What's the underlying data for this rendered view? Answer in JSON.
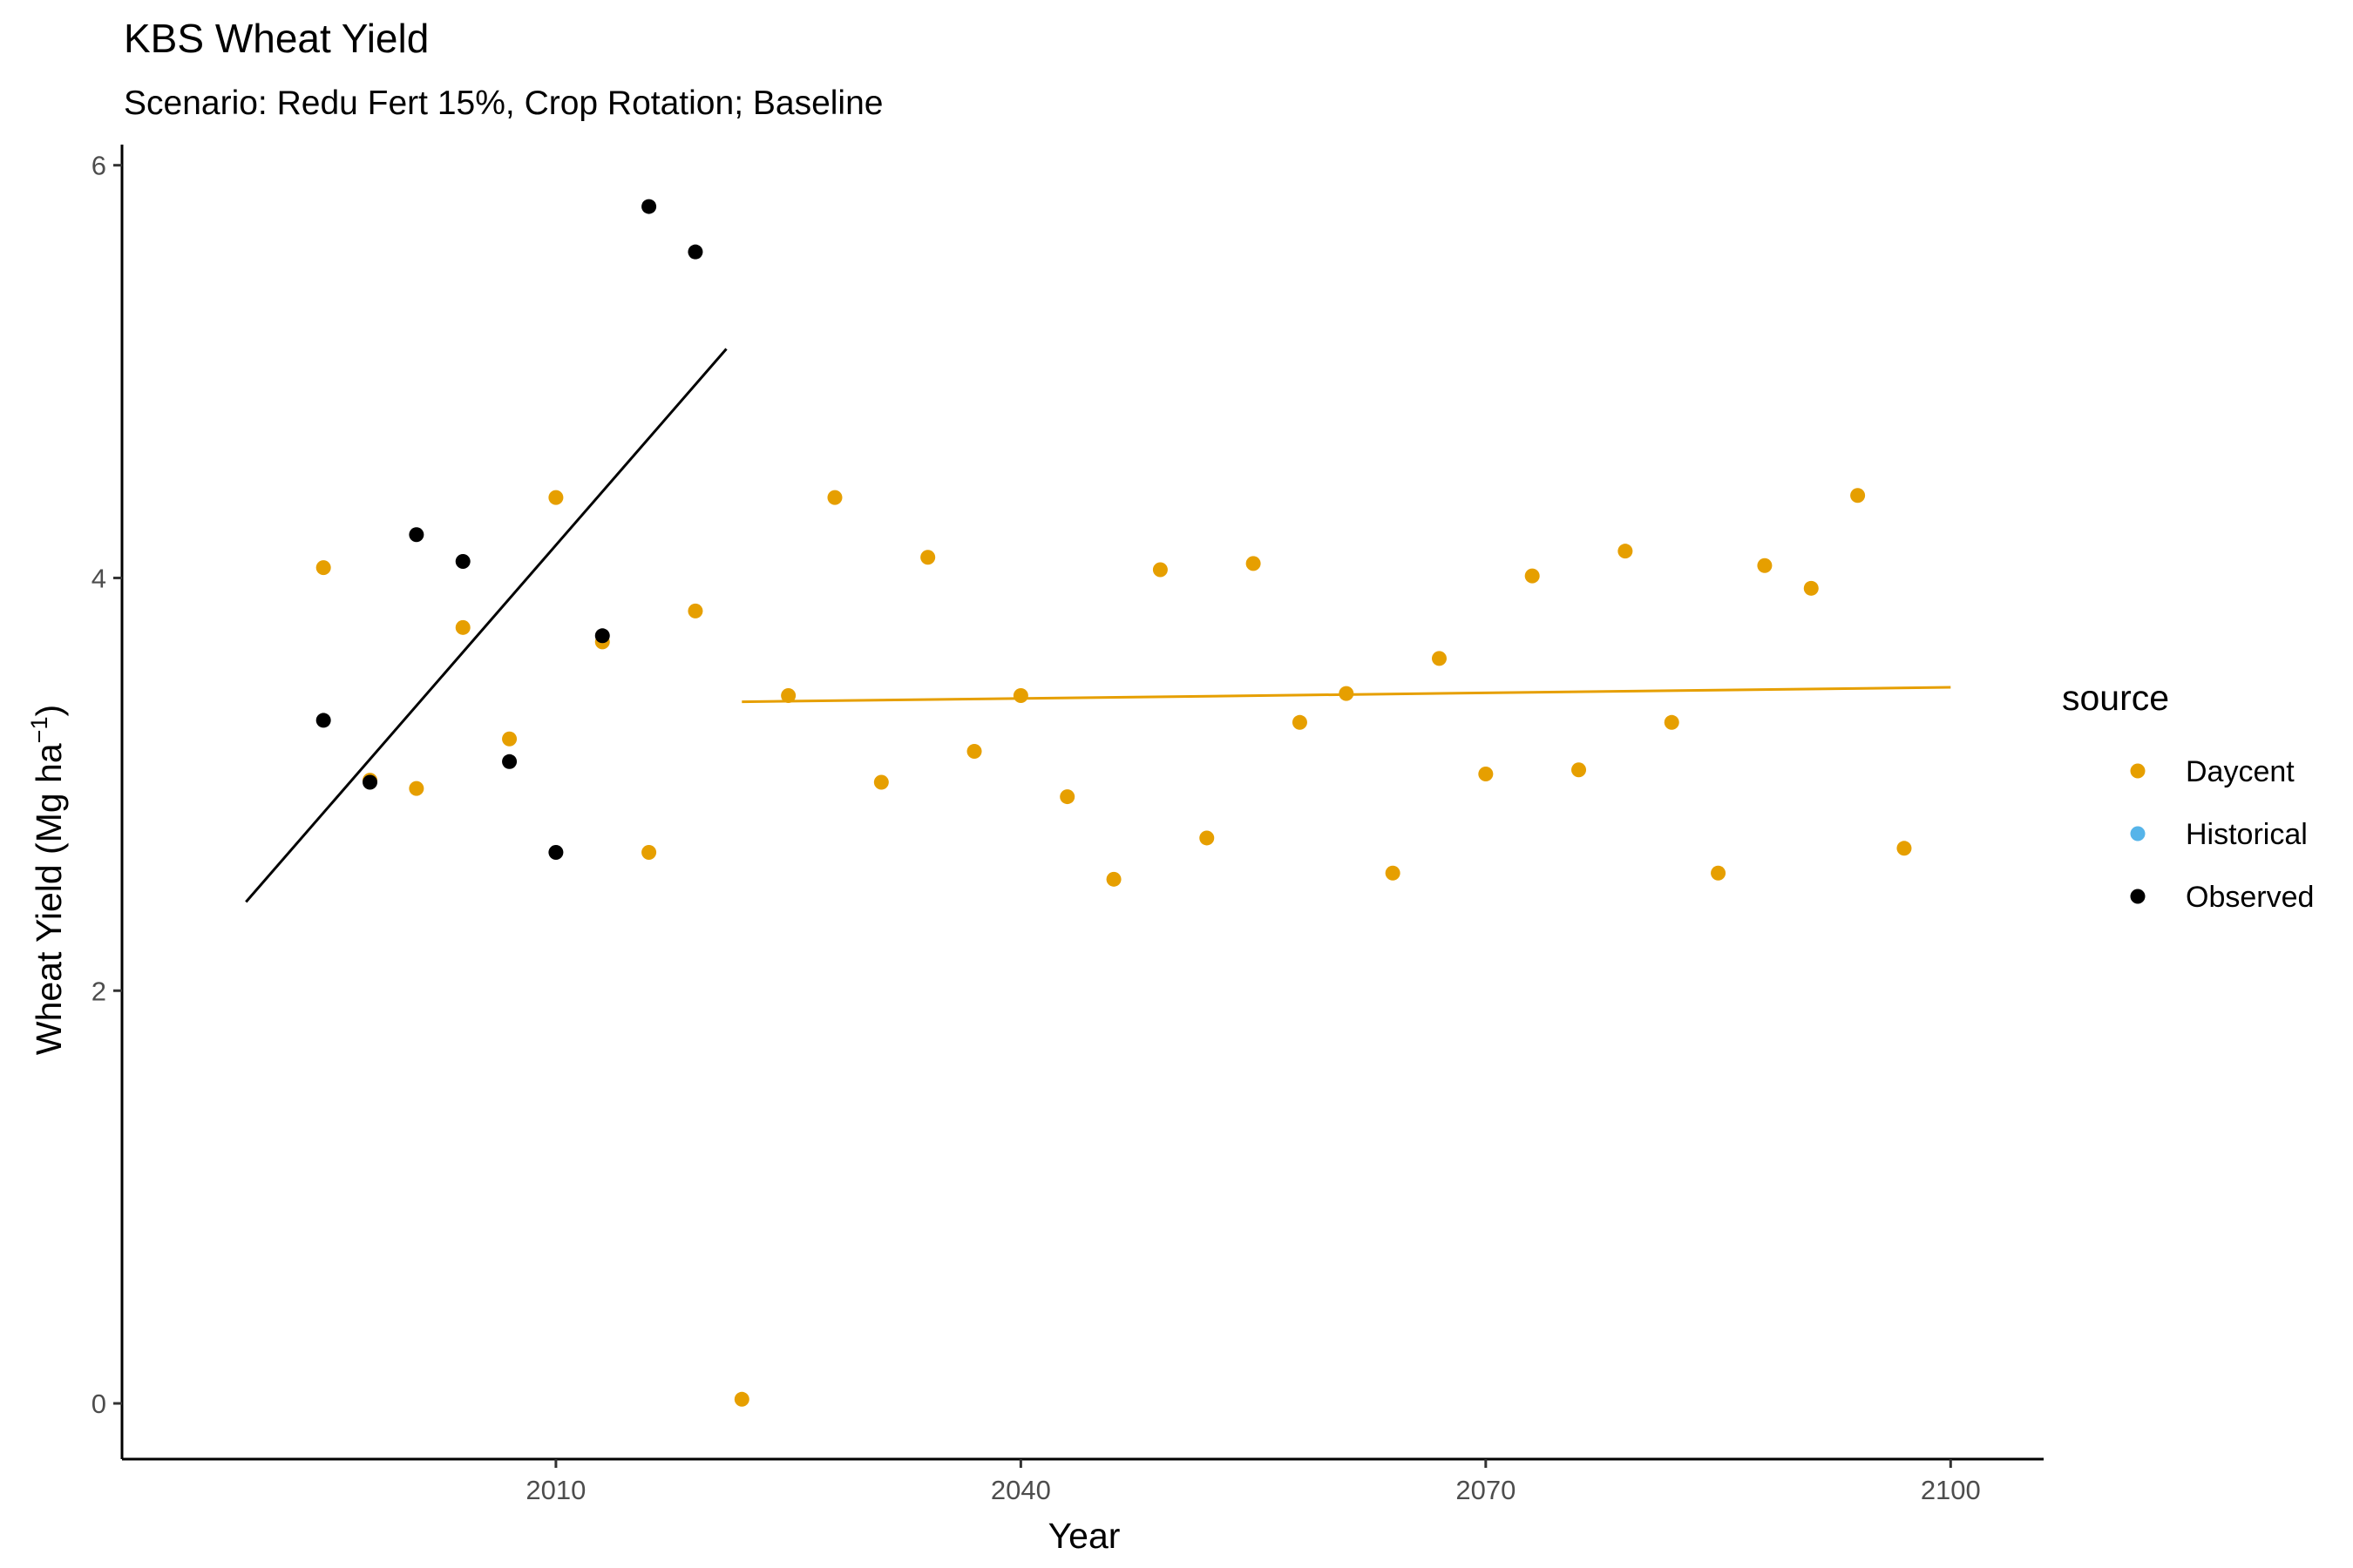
{
  "title": "KBS Wheat Yield",
  "subtitle": "Scenario: Redu Fert 15%, Crop Rotation; Baseline",
  "chart_data": {
    "type": "scatter",
    "xlabel": "Year",
    "ylabel_main": "Wheat Yield (Mg ha",
    "ylabel_sup": "−1",
    "ylabel_close": ")",
    "xlim": [
      1982,
      2106
    ],
    "ylim": [
      -0.27,
      6.1
    ],
    "xticks": [
      2010,
      2040,
      2070,
      2100
    ],
    "yticks": [
      0,
      2,
      4,
      6
    ],
    "grid": false,
    "legend": {
      "title": "source",
      "position": "right",
      "entries": [
        {
          "name": "Daycent",
          "color": "#E69F00"
        },
        {
          "name": "Historical",
          "color": "#56B4E9"
        },
        {
          "name": "Observed",
          "color": "#000000"
        }
      ]
    },
    "series": [
      {
        "name": "Daycent",
        "color": "#E69F00",
        "x": [
          1995,
          1998,
          2001,
          2004,
          2007,
          2010,
          2013,
          2016,
          2019,
          2022,
          2025,
          2028,
          2031,
          2034,
          2037,
          2040,
          2043,
          2046,
          2049,
          2052,
          2055,
          2058,
          2061,
          2064,
          2067,
          2070,
          2073,
          2076,
          2079,
          2082,
          2085,
          2088,
          2091,
          2094,
          2097
        ],
        "y": [
          4.05,
          3.02,
          2.98,
          3.76,
          3.22,
          4.39,
          3.69,
          2.67,
          3.84,
          0.02,
          3.43,
          4.39,
          3.01,
          4.1,
          3.16,
          3.43,
          2.94,
          2.54,
          4.04,
          2.74,
          4.07,
          3.3,
          3.44,
          2.57,
          3.61,
          3.05,
          4.01,
          3.07,
          4.13,
          3.3,
          2.57,
          4.06,
          3.95,
          4.4,
          2.69
        ]
      },
      {
        "name": "Observed",
        "color": "#000000",
        "x": [
          1995,
          1998,
          2001,
          2004,
          2007,
          2010,
          2013,
          2016,
          2019
        ],
        "y": [
          3.31,
          3.01,
          4.21,
          4.08,
          3.11,
          2.67,
          3.72,
          5.8,
          5.58
        ]
      }
    ],
    "trend_lines": [
      {
        "series": "Observed",
        "color": "#000000",
        "x": [
          1990,
          2021
        ],
        "y": [
          2.43,
          5.11
        ]
      },
      {
        "series": "Daycent",
        "color": "#E69F00",
        "x": [
          2022,
          2100
        ],
        "y": [
          3.4,
          3.47
        ]
      }
    ]
  }
}
